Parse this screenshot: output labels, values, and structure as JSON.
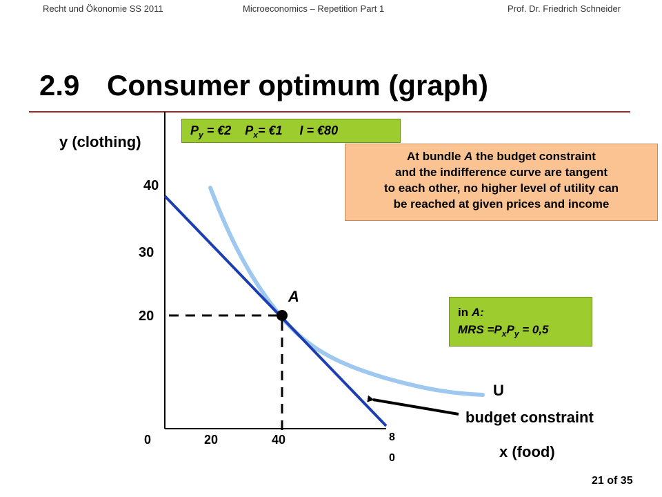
{
  "header": {
    "left": "Recht und Ökonomie SS 2011",
    "center": "Microeconomics – Repetition Part 1",
    "right": "Prof. Dr. Friedrich Schneider"
  },
  "title": {
    "number": "2.9",
    "text": "Consumer optimum (graph)"
  },
  "axes": {
    "y_label": "y (clothing)",
    "x_label": "x (food)",
    "y_ticks": [
      "40",
      "30",
      "20"
    ],
    "x_ticks": [
      "0",
      "20",
      "40"
    ],
    "x_tick_80_top": "8",
    "x_tick_80_bottom": "0"
  },
  "price_box": {
    "p": "P",
    "y_sub": "y",
    "p_y_value": " = €2",
    "p2": "P",
    "x_sub": "x",
    "p_x_value": "= €1",
    "income": "I = €80"
  },
  "tangency_note": {
    "line1_a": "At bundle ",
    "line1_b": "A",
    "line1_c": " the budget constraint",
    "line2": "and the indifference curve are tangent",
    "line3": "to each other, no higher level of utility can",
    "line4": "be reached at given prices and income"
  },
  "mrs_box": {
    "line1_a": "in ",
    "line1_b": "A:",
    "mrs_prefix": "MRS =P",
    "x_sub": "x",
    "mid": "P",
    "y_sub": "y",
    "mrs_value": " = 0,5"
  },
  "labels": {
    "point": "A",
    "curve": "U",
    "budget": "budget constraint"
  },
  "page": "21 of 35",
  "colors": {
    "budget_line": "#1c3eb0",
    "indifference_curve": "#9ec8ef",
    "green_box": "#9ccc2e",
    "orange_box": "#fbc392",
    "title_rule": "#a0262a"
  }
}
